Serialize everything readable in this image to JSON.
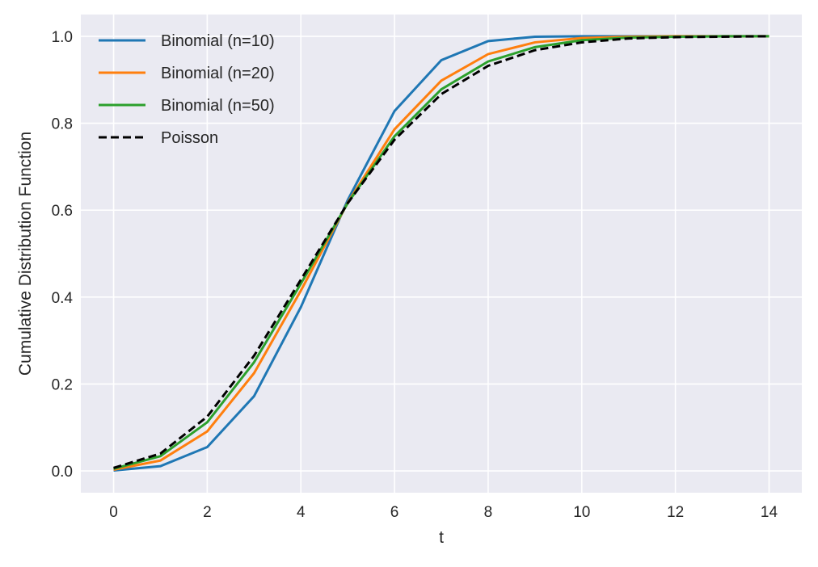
{
  "chart_data": {
    "type": "line",
    "title": "",
    "xlabel": "t",
    "ylabel": "Cumulative Distribution Function",
    "xlim": [
      -0.7,
      14.7
    ],
    "ylim": [
      -0.05,
      1.05
    ],
    "grid": true,
    "legend_placement": "top-left",
    "x": [
      0,
      1,
      2,
      3,
      4,
      5,
      6,
      7,
      8,
      9,
      10,
      11,
      12,
      13,
      14
    ],
    "xticks": [
      0,
      2,
      4,
      6,
      8,
      10,
      12,
      14
    ],
    "xtick_labels": [
      "0",
      "2",
      "4",
      "6",
      "8",
      "10",
      "12",
      "14"
    ],
    "yticks": [
      0,
      0.2,
      0.4,
      0.6,
      0.8,
      1.0
    ],
    "ytick_labels": [
      "0.0",
      "0.2",
      "0.4",
      "0.6",
      "0.8",
      "1.0"
    ],
    "series": [
      {
        "name": "Binomial (n=10)",
        "color": "#1f77b4",
        "dash": "solid",
        "values": [
          0.001,
          0.011,
          0.055,
          0.172,
          0.377,
          0.623,
          0.828,
          0.945,
          0.989,
          0.999,
          1.0,
          1.0,
          1.0,
          1.0,
          1.0
        ]
      },
      {
        "name": "Binomial (n=20)",
        "color": "#ff7f0e",
        "dash": "solid",
        "values": [
          0.003,
          0.024,
          0.091,
          0.225,
          0.415,
          0.617,
          0.786,
          0.898,
          0.959,
          0.986,
          0.996,
          0.999,
          1.0,
          1.0,
          1.0
        ]
      },
      {
        "name": "Binomial (n=50)",
        "color": "#2ca02c",
        "dash": "solid",
        "values": [
          0.005,
          0.034,
          0.112,
          0.25,
          0.431,
          0.616,
          0.77,
          0.878,
          0.942,
          0.975,
          0.991,
          0.997,
          0.999,
          1.0,
          1.0
        ]
      },
      {
        "name": "Poisson",
        "color": "#000000",
        "dash": "dashed",
        "values": [
          0.007,
          0.04,
          0.125,
          0.265,
          0.44,
          0.616,
          0.762,
          0.867,
          0.932,
          0.968,
          0.986,
          0.995,
          0.998,
          0.999,
          1.0
        ]
      }
    ]
  }
}
